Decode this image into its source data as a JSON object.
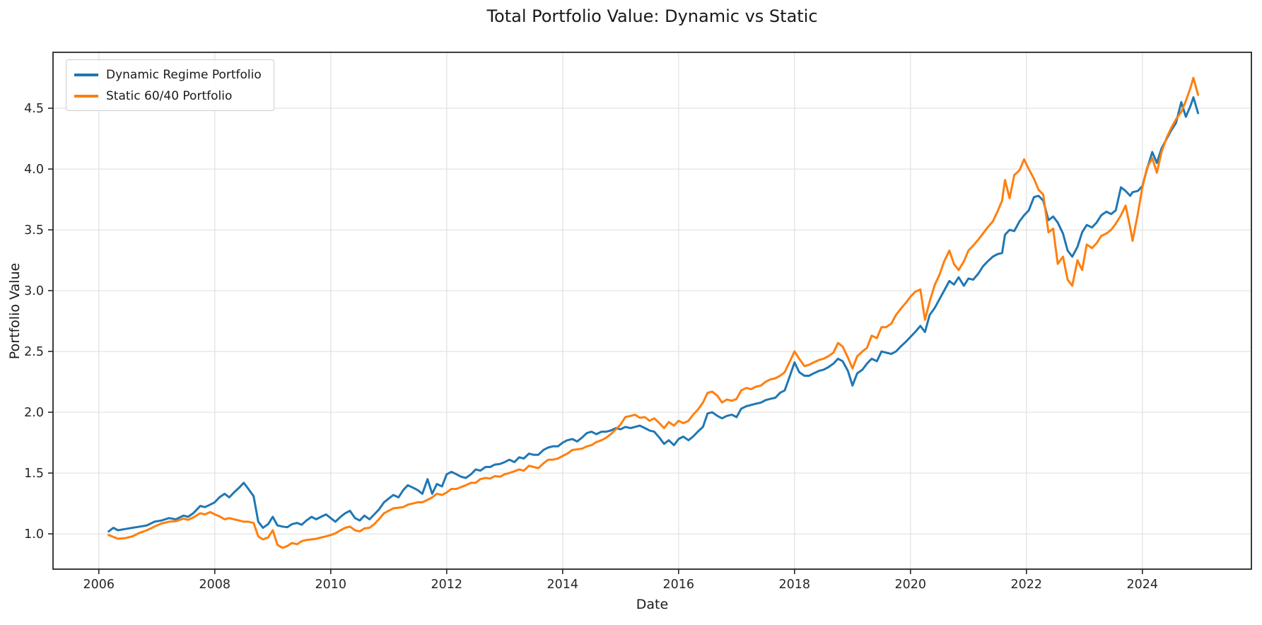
{
  "figure": {
    "title": "Total Portfolio Value: Dynamic vs Static",
    "xlabel": "Date",
    "ylabel": "Portfolio Value"
  },
  "legend": {
    "items": [
      {
        "label": "Dynamic Regime Portfolio",
        "color": "#1f77b4"
      },
      {
        "label": "Static 60/40 Portfolio",
        "color": "#ff7f0e"
      }
    ]
  },
  "chart_data": {
    "type": "line",
    "title": "Total Portfolio Value: Dynamic vs Static",
    "xlabel": "Date",
    "ylabel": "Portfolio Value",
    "x_ticks": [
      2006,
      2008,
      2010,
      2012,
      2014,
      2016,
      2018,
      2020,
      2022,
      2024
    ],
    "y_ticks": [
      1.0,
      1.5,
      2.0,
      2.5,
      3.0,
      3.5,
      4.0,
      4.5
    ],
    "xlim": [
      2005.21,
      2025.88
    ],
    "ylim": [
      0.71,
      4.96
    ],
    "grid": true,
    "grid_color": "#e3e3e3",
    "legend_position": "upper left",
    "x": [
      2006.17,
      2006.25,
      2006.33,
      2006.46,
      2006.58,
      2006.71,
      2006.83,
      2006.96,
      2007.08,
      2007.21,
      2007.33,
      2007.46,
      2007.54,
      2007.63,
      2007.75,
      2007.83,
      2007.92,
      2008.0,
      2008.08,
      2008.17,
      2008.25,
      2008.33,
      2008.42,
      2008.5,
      2008.58,
      2008.67,
      2008.75,
      2008.83,
      2008.92,
      2009.0,
      2009.08,
      2009.17,
      2009.25,
      2009.33,
      2009.42,
      2009.5,
      2009.58,
      2009.67,
      2009.75,
      2009.83,
      2009.92,
      2010.0,
      2010.08,
      2010.17,
      2010.25,
      2010.33,
      2010.42,
      2010.5,
      2010.58,
      2010.67,
      2010.75,
      2010.83,
      2010.92,
      2011.0,
      2011.08,
      2011.17,
      2011.25,
      2011.33,
      2011.42,
      2011.5,
      2011.58,
      2011.67,
      2011.75,
      2011.83,
      2011.92,
      2012.0,
      2012.08,
      2012.17,
      2012.25,
      2012.33,
      2012.42,
      2012.5,
      2012.58,
      2012.67,
      2012.75,
      2012.83,
      2012.92,
      2013.0,
      2013.08,
      2013.17,
      2013.25,
      2013.33,
      2013.42,
      2013.5,
      2013.58,
      2013.67,
      2013.75,
      2013.83,
      2013.92,
      2014.0,
      2014.08,
      2014.17,
      2014.25,
      2014.33,
      2014.42,
      2014.5,
      2014.58,
      2014.67,
      2014.75,
      2014.83,
      2014.92,
      2015.0,
      2015.08,
      2015.17,
      2015.25,
      2015.33,
      2015.42,
      2015.5,
      2015.58,
      2015.67,
      2015.75,
      2015.83,
      2015.92,
      2016.0,
      2016.08,
      2016.17,
      2016.25,
      2016.33,
      2016.42,
      2016.5,
      2016.58,
      2016.67,
      2016.75,
      2016.83,
      2016.92,
      2017.0,
      2017.08,
      2017.17,
      2017.25,
      2017.33,
      2017.42,
      2017.5,
      2017.58,
      2017.67,
      2017.75,
      2017.83,
      2017.92,
      2018.0,
      2018.08,
      2018.17,
      2018.25,
      2018.33,
      2018.42,
      2018.5,
      2018.58,
      2018.67,
      2018.75,
      2018.83,
      2018.92,
      2019.0,
      2019.08,
      2019.17,
      2019.25,
      2019.33,
      2019.42,
      2019.5,
      2019.58,
      2019.67,
      2019.75,
      2019.83,
      2019.92,
      2020.0,
      2020.08,
      2020.17,
      2020.25,
      2020.33,
      2020.42,
      2020.5,
      2020.58,
      2020.67,
      2020.75,
      2020.83,
      2020.92,
      2021.0,
      2021.08,
      2021.17,
      2021.25,
      2021.33,
      2021.42,
      2021.5,
      2021.58,
      2021.63,
      2021.71,
      2021.79,
      2021.88,
      2021.96,
      2022.04,
      2022.13,
      2022.21,
      2022.29,
      2022.38,
      2022.46,
      2022.54,
      2022.63,
      2022.71,
      2022.79,
      2022.88,
      2022.96,
      2023.04,
      2023.13,
      2023.21,
      2023.29,
      2023.38,
      2023.46,
      2023.54,
      2023.63,
      2023.71,
      2023.79,
      2023.83,
      2023.92,
      2024.0,
      2024.08,
      2024.17,
      2024.25,
      2024.33,
      2024.42,
      2024.5,
      2024.58,
      2024.67,
      2024.75,
      2024.83,
      2024.88,
      2024.96
    ],
    "series": [
      {
        "name": "Dynamic Regime Portfolio",
        "color": "#1f77b4",
        "values": [
          1.02,
          1.05,
          1.03,
          1.04,
          1.05,
          1.06,
          1.07,
          1.1,
          1.11,
          1.13,
          1.12,
          1.15,
          1.14,
          1.17,
          1.23,
          1.22,
          1.24,
          1.26,
          1.3,
          1.33,
          1.3,
          1.34,
          1.38,
          1.42,
          1.37,
          1.31,
          1.1,
          1.05,
          1.08,
          1.14,
          1.07,
          1.06,
          1.055,
          1.08,
          1.09,
          1.075,
          1.11,
          1.14,
          1.12,
          1.14,
          1.16,
          1.13,
          1.1,
          1.14,
          1.17,
          1.19,
          1.13,
          1.11,
          1.15,
          1.12,
          1.16,
          1.2,
          1.26,
          1.29,
          1.32,
          1.3,
          1.36,
          1.4,
          1.38,
          1.36,
          1.33,
          1.45,
          1.33,
          1.41,
          1.39,
          1.49,
          1.51,
          1.49,
          1.47,
          1.46,
          1.49,
          1.53,
          1.52,
          1.55,
          1.55,
          1.57,
          1.575,
          1.59,
          1.61,
          1.59,
          1.63,
          1.62,
          1.66,
          1.65,
          1.65,
          1.69,
          1.71,
          1.72,
          1.72,
          1.75,
          1.77,
          1.78,
          1.76,
          1.79,
          1.83,
          1.84,
          1.82,
          1.84,
          1.84,
          1.85,
          1.87,
          1.86,
          1.88,
          1.87,
          1.88,
          1.89,
          1.87,
          1.85,
          1.84,
          1.79,
          1.74,
          1.77,
          1.73,
          1.78,
          1.8,
          1.77,
          1.8,
          1.84,
          1.88,
          1.99,
          2.0,
          1.97,
          1.95,
          1.97,
          1.98,
          1.96,
          2.03,
          2.05,
          2.06,
          2.07,
          2.08,
          2.1,
          2.11,
          2.12,
          2.16,
          2.18,
          2.3,
          2.41,
          2.33,
          2.3,
          2.3,
          2.32,
          2.34,
          2.35,
          2.37,
          2.4,
          2.44,
          2.42,
          2.34,
          2.22,
          2.32,
          2.35,
          2.4,
          2.44,
          2.42,
          2.5,
          2.49,
          2.48,
          2.5,
          2.54,
          2.58,
          2.62,
          2.66,
          2.71,
          2.66,
          2.8,
          2.86,
          2.93,
          3.0,
          3.08,
          3.05,
          3.11,
          3.04,
          3.1,
          3.09,
          3.14,
          3.2,
          3.24,
          3.28,
          3.3,
          3.31,
          3.46,
          3.5,
          3.49,
          3.57,
          3.62,
          3.66,
          3.77,
          3.78,
          3.74,
          3.58,
          3.61,
          3.56,
          3.47,
          3.33,
          3.28,
          3.36,
          3.48,
          3.54,
          3.52,
          3.56,
          3.62,
          3.65,
          3.63,
          3.66,
          3.85,
          3.82,
          3.78,
          3.81,
          3.82,
          3.86,
          4.0,
          4.14,
          4.05,
          4.17,
          4.25,
          4.32,
          4.38,
          4.55,
          4.43,
          4.52,
          4.59,
          4.46
        ]
      },
      {
        "name": "Static 60/40 Portfolio",
        "color": "#ff7f0e",
        "values": [
          0.99,
          0.975,
          0.96,
          0.965,
          0.98,
          1.01,
          1.03,
          1.06,
          1.085,
          1.1,
          1.105,
          1.125,
          1.115,
          1.135,
          1.17,
          1.16,
          1.18,
          1.16,
          1.145,
          1.12,
          1.13,
          1.12,
          1.11,
          1.1,
          1.1,
          1.09,
          0.98,
          0.955,
          0.97,
          1.03,
          0.91,
          0.885,
          0.9,
          0.925,
          0.915,
          0.94,
          0.95,
          0.955,
          0.96,
          0.97,
          0.98,
          0.99,
          1.005,
          1.03,
          1.05,
          1.06,
          1.03,
          1.02,
          1.045,
          1.05,
          1.08,
          1.12,
          1.17,
          1.19,
          1.21,
          1.215,
          1.22,
          1.24,
          1.25,
          1.26,
          1.26,
          1.28,
          1.3,
          1.33,
          1.32,
          1.34,
          1.37,
          1.37,
          1.385,
          1.4,
          1.42,
          1.42,
          1.45,
          1.46,
          1.455,
          1.475,
          1.47,
          1.49,
          1.5,
          1.515,
          1.53,
          1.52,
          1.56,
          1.55,
          1.54,
          1.58,
          1.61,
          1.61,
          1.62,
          1.64,
          1.66,
          1.69,
          1.695,
          1.7,
          1.72,
          1.73,
          1.755,
          1.77,
          1.79,
          1.82,
          1.86,
          1.9,
          1.96,
          1.97,
          1.98,
          1.955,
          1.96,
          1.93,
          1.95,
          1.91,
          1.87,
          1.92,
          1.89,
          1.93,
          1.91,
          1.93,
          1.98,
          2.02,
          2.08,
          2.16,
          2.17,
          2.135,
          2.08,
          2.105,
          2.095,
          2.11,
          2.18,
          2.2,
          2.19,
          2.21,
          2.22,
          2.25,
          2.27,
          2.28,
          2.3,
          2.33,
          2.42,
          2.5,
          2.44,
          2.38,
          2.39,
          2.41,
          2.43,
          2.44,
          2.46,
          2.49,
          2.57,
          2.54,
          2.45,
          2.36,
          2.46,
          2.5,
          2.53,
          2.63,
          2.61,
          2.7,
          2.7,
          2.73,
          2.8,
          2.85,
          2.9,
          2.95,
          2.99,
          3.01,
          2.76,
          2.91,
          3.05,
          3.13,
          3.24,
          3.33,
          3.22,
          3.17,
          3.24,
          3.33,
          3.37,
          3.42,
          3.47,
          3.52,
          3.57,
          3.65,
          3.74,
          3.91,
          3.76,
          3.95,
          3.99,
          4.08,
          4.0,
          3.92,
          3.83,
          3.79,
          3.48,
          3.51,
          3.22,
          3.28,
          3.09,
          3.04,
          3.25,
          3.17,
          3.38,
          3.35,
          3.39,
          3.45,
          3.47,
          3.5,
          3.55,
          3.62,
          3.7,
          3.52,
          3.41,
          3.63,
          3.85,
          4.01,
          4.09,
          3.97,
          4.14,
          4.26,
          4.34,
          4.41,
          4.47,
          4.56,
          4.67,
          4.75,
          4.61
        ]
      }
    ]
  }
}
